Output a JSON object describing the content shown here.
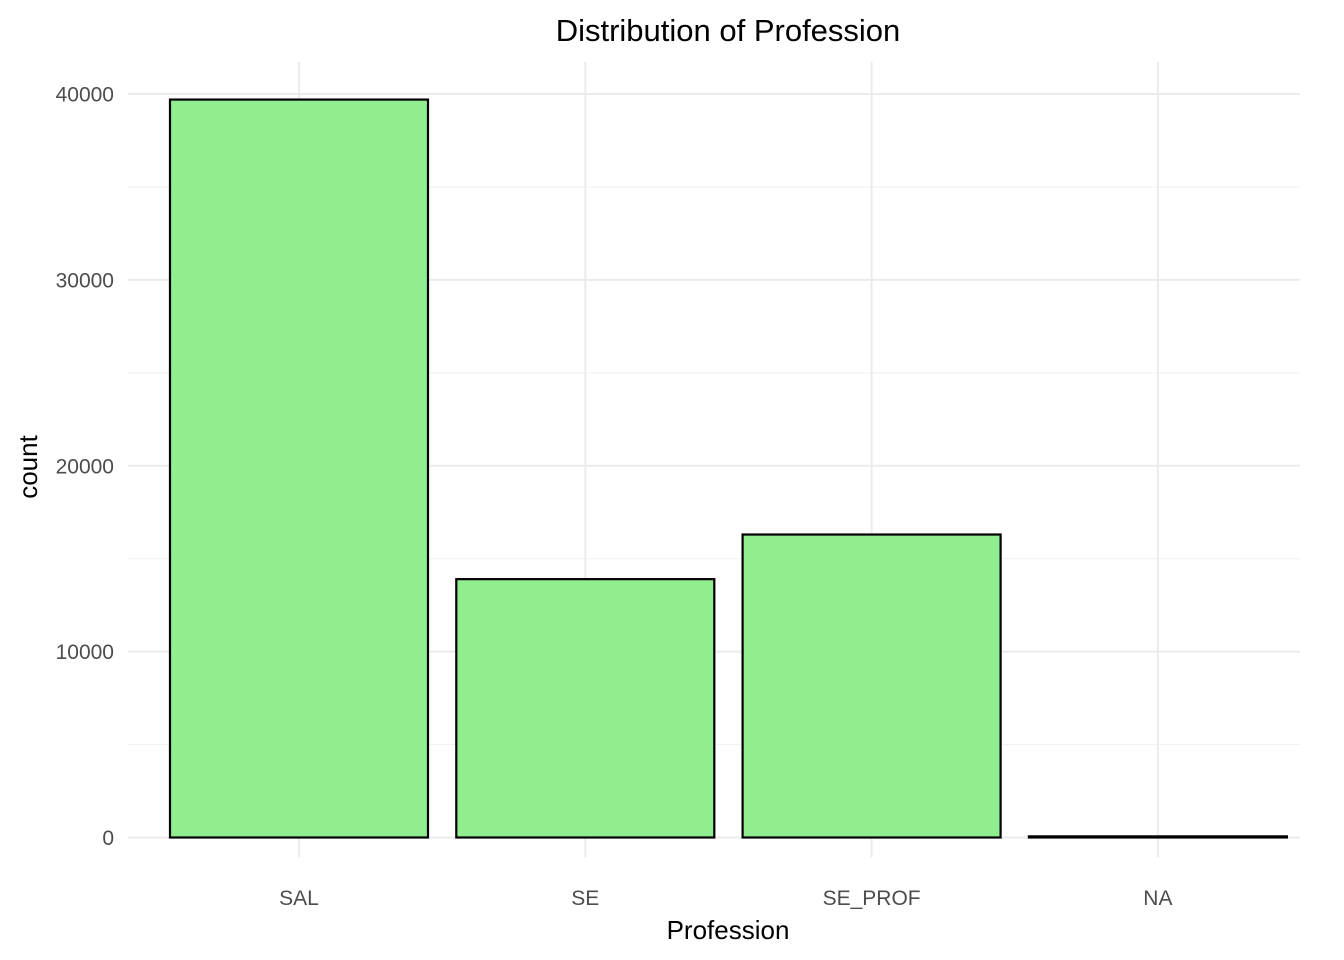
{
  "chart_data": {
    "type": "bar",
    "title": "Distribution of Profession",
    "xlabel": "Profession",
    "ylabel": "count",
    "categories": [
      "SAL",
      "SE",
      "SE_PROF",
      "NA"
    ],
    "values": [
      39700,
      13900,
      16300,
      60
    ],
    "ylim": [
      0,
      42000
    ],
    "yticks": [
      0,
      10000,
      20000,
      30000,
      40000
    ],
    "ytick_labels": [
      "0",
      "10000",
      "20000",
      "30000",
      "40000"
    ],
    "grid": true,
    "legend": "none",
    "colors": {
      "bar_fill": "#90EE90",
      "bar_outline": "#000000",
      "grid": "#EBEBEB",
      "tick_text": "#4D4D4D"
    }
  }
}
